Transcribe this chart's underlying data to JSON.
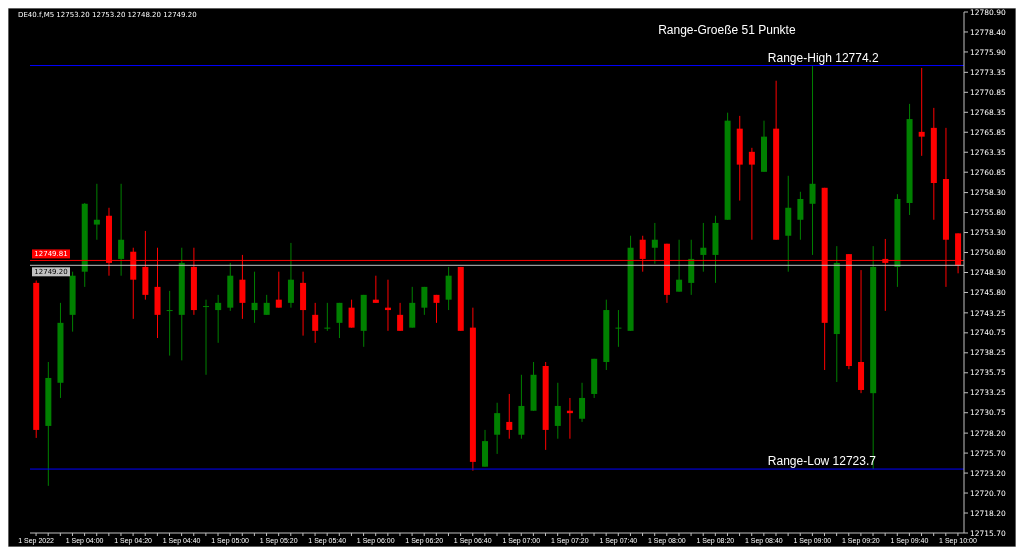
{
  "chart_data": {
    "type": "candlestick",
    "categories": [
      "1 Sep 2022",
      null,
      null,
      null,
      "1 Sep 04:00",
      null,
      null,
      null,
      "1 Sep 04:20",
      null,
      null,
      null,
      "1 Sep 04:40",
      null,
      null,
      null,
      "1 Sep 05:00",
      null,
      null,
      null,
      "1 Sep 05:20",
      null,
      null,
      null,
      "1 Sep 05:40",
      null,
      null,
      null,
      "1 Sep 06:00",
      null,
      null,
      null,
      "1 Sep 06:20",
      null,
      null,
      null,
      "1 Sep 06:40",
      null,
      null,
      null,
      "1 Sep 07:00",
      null,
      null,
      null,
      "1 Sep 07:20",
      null,
      null,
      null,
      "1 Sep 07:40",
      null,
      null,
      null,
      "1 Sep 08:00",
      null,
      null,
      null,
      "1 Sep 08:20",
      null,
      null,
      null,
      "1 Sep 08:40",
      null,
      null,
      null,
      "1 Sep 09:00",
      null,
      null,
      null,
      "1 Sep 09:20",
      null,
      null,
      null,
      "1 Sep 09:40",
      null,
      null,
      null,
      "1 Sep 10:00"
    ],
    "ohlc": [
      [
        12747.0,
        12747.3,
        12727.6,
        12728.6
      ],
      [
        12729.1,
        12737.1,
        12721.6,
        12735.1
      ],
      [
        12734.5,
        12744.5,
        12732.6,
        12742.0
      ],
      [
        12743.0,
        12748.4,
        12740.9,
        12747.9
      ],
      [
        12748.4,
        12757.0,
        12746.5,
        12756.9
      ],
      [
        12754.3,
        12759.4,
        12752.4,
        12754.9
      ],
      [
        12755.4,
        12756.4,
        12747.9,
        12749.5
      ],
      [
        12750.0,
        12759.4,
        12747.9,
        12752.4
      ],
      [
        12750.9,
        12751.4,
        12742.5,
        12747.4
      ],
      [
        12749.0,
        12753.5,
        12744.9,
        12745.5
      ],
      [
        12746.5,
        12751.4,
        12740.1,
        12743.0
      ],
      [
        12743.6,
        12746.0,
        12737.9,
        12743.6
      ],
      [
        12743.0,
        12751.4,
        12737.3,
        12749.5
      ],
      [
        12749.0,
        12751.4,
        12743.0,
        12743.6
      ],
      [
        12744.1,
        12744.9,
        12735.5,
        12744.1
      ],
      [
        12743.6,
        12745.5,
        12739.5,
        12744.5
      ],
      [
        12743.9,
        12749.5,
        12743.5,
        12747.9
      ],
      [
        12747.4,
        12750.5,
        12742.5,
        12744.5
      ],
      [
        12743.6,
        12748.4,
        12742.0,
        12744.5
      ],
      [
        12743.0,
        12745.5,
        12743.0,
        12744.5
      ],
      [
        12744.9,
        12748.4,
        12743.9,
        12743.9
      ],
      [
        12744.5,
        12752.0,
        12743.9,
        12747.4
      ],
      [
        12747.0,
        12748.4,
        12740.4,
        12743.6
      ],
      [
        12743.0,
        12744.5,
        12739.5,
        12741.0
      ],
      [
        12741.4,
        12744.5,
        12741.0,
        12741.4
      ],
      [
        12742.0,
        12744.5,
        12740.1,
        12744.5
      ],
      [
        12743.9,
        12744.9,
        12741.4,
        12741.4
      ],
      [
        12741.0,
        12745.5,
        12739.0,
        12745.5
      ],
      [
        12744.9,
        12747.9,
        12744.5,
        12744.5
      ],
      [
        12743.9,
        12747.4,
        12741.0,
        12743.6
      ],
      [
        12743.0,
        12744.5,
        12741.0,
        12741.0
      ],
      [
        12741.4,
        12746.5,
        12741.4,
        12744.5
      ],
      [
        12743.9,
        12746.5,
        12743.0,
        12746.5
      ],
      [
        12745.5,
        12745.5,
        12742.0,
        12744.5
      ],
      [
        12744.9,
        12749.0,
        12743.6,
        12747.9
      ],
      [
        12749.0,
        12749.0,
        12741.0,
        12741.0
      ],
      [
        12741.4,
        12743.9,
        12723.5,
        12724.6
      ],
      [
        12724.0,
        12728.6,
        12724.0,
        12727.2
      ],
      [
        12728.0,
        12732.0,
        12725.6,
        12730.7
      ],
      [
        12729.6,
        12733.1,
        12727.5,
        12728.6
      ],
      [
        12728.0,
        12735.5,
        12727.5,
        12731.6
      ],
      [
        12731.0,
        12737.1,
        12731.0,
        12735.5
      ],
      [
        12736.6,
        12737.1,
        12726.1,
        12728.6
      ],
      [
        12729.1,
        12734.5,
        12727.5,
        12731.6
      ],
      [
        12731.0,
        12732.6,
        12727.5,
        12730.7
      ],
      [
        12730.0,
        12734.5,
        12729.6,
        12732.6
      ],
      [
        12733.1,
        12737.5,
        12732.6,
        12737.5
      ],
      [
        12737.1,
        12744.9,
        12736.1,
        12743.6
      ],
      [
        12741.4,
        12743.6,
        12739.0,
        12741.4
      ],
      [
        12741.0,
        12752.9,
        12741.0,
        12751.4
      ],
      [
        12752.4,
        12752.9,
        12748.4,
        12750.0
      ],
      [
        12751.4,
        12754.5,
        12749.4,
        12752.4
      ],
      [
        12751.9,
        12751.9,
        12744.5,
        12745.5
      ],
      [
        12745.9,
        12752.4,
        12745.9,
        12747.4
      ],
      [
        12747.0,
        12752.4,
        12745.5,
        12750.0
      ],
      [
        12750.5,
        12754.5,
        12748.4,
        12751.4
      ],
      [
        12750.5,
        12755.4,
        12747.0,
        12754.5
      ],
      [
        12754.9,
        12768.3,
        12754.9,
        12767.3
      ],
      [
        12766.3,
        12767.9,
        12757.3,
        12761.8
      ],
      [
        12763.4,
        12763.9,
        12752.4,
        12761.8
      ],
      [
        12760.9,
        12767.3,
        12760.9,
        12765.3
      ],
      [
        12766.3,
        12772.3,
        12752.4,
        12752.4
      ],
      [
        12752.9,
        12760.4,
        12748.4,
        12756.4
      ],
      [
        12754.9,
        12758.4,
        12752.4,
        12757.5
      ],
      [
        12756.9,
        12774.2,
        12750.5,
        12759.4
      ],
      [
        12758.9,
        12758.9,
        12736.1,
        12742.0
      ],
      [
        12740.6,
        12751.6,
        12734.6,
        12749.5
      ],
      [
        12750.6,
        12750.6,
        12736.2,
        12736.6
      ],
      [
        12737.1,
        12748.6,
        12733.2,
        12733.6
      ],
      [
        12733.2,
        12751.6,
        12723.7,
        12749.0
      ],
      [
        12750.0,
        12752.5,
        12743.5,
        12749.5
      ],
      [
        12749.0,
        12758.1,
        12746.5,
        12757.5
      ],
      [
        12757.0,
        12769.4,
        12755.5,
        12767.5
      ],
      [
        12765.9,
        12773.9,
        12762.9,
        12765.3
      ],
      [
        12766.4,
        12768.9,
        12754.9,
        12759.5
      ],
      [
        12760.0,
        12766.4,
        12746.5,
        12752.4
      ],
      [
        12753.2,
        12753.2,
        12748.2,
        12749.2
      ]
    ],
    "colors": [
      "#ff0000",
      "#008000",
      "#008000",
      "#008000",
      "#008000",
      "#008000",
      "#ff0000",
      "#008000",
      "#ff0000",
      "#ff0000",
      "#ff0000",
      "#008000",
      "#008000",
      "#ff0000",
      "#008000",
      "#008000",
      "#008000",
      "#ff0000",
      "#008000",
      "#008000",
      "#ff0000",
      "#008000",
      "#ff0000",
      "#ff0000",
      "#008000",
      "#008000",
      "#ff0000",
      "#008000",
      "#ff0000",
      "#ff0000",
      "#ff0000",
      "#008000",
      "#008000",
      "#ff0000",
      "#008000",
      "#ff0000",
      "#ff0000",
      "#008000",
      "#008000",
      "#ff0000",
      "#008000",
      "#008000",
      "#ff0000",
      "#008000",
      "#ff0000",
      "#008000",
      "#008000",
      "#008000",
      "#008000",
      "#008000",
      "#ff0000",
      "#008000",
      "#ff0000",
      "#008000",
      "#008000",
      "#008000",
      "#008000",
      "#008000",
      "#ff0000",
      "#ff0000",
      "#008000",
      "#ff0000",
      "#008000",
      "#008000",
      "#008000",
      "#ff0000",
      "#008000",
      "#ff0000",
      "#ff0000",
      "#008000",
      "#ff0000",
      "#008000",
      "#008000",
      "#ff0000",
      "#ff0000",
      "#ff0000",
      "#ff0000"
    ],
    "ylim": [
      12715.7,
      12780.9
    ],
    "yticks": [
      {
        "value": 12780.9,
        "label": "12780.90"
      },
      {
        "value": 12778.4,
        "label": "12778.40"
      },
      {
        "value": 12775.9,
        "label": "12775.90"
      },
      {
        "value": 12773.35,
        "label": "12773.35"
      },
      {
        "value": 12770.85,
        "label": "12770.85"
      },
      {
        "value": 12768.35,
        "label": "12768.35"
      },
      {
        "value": 12765.85,
        "label": "12765.85"
      },
      {
        "value": 12763.35,
        "label": "12763.35"
      },
      {
        "value": 12760.85,
        "label": "12760.85"
      },
      {
        "value": 12758.3,
        "label": "12758.30"
      },
      {
        "value": 12755.8,
        "label": "12755.80"
      },
      {
        "value": 12753.3,
        "label": "12753.30"
      },
      {
        "value": 12750.8,
        "label": "12750.80"
      },
      {
        "value": 12748.3,
        "label": "12748.30"
      },
      {
        "value": 12745.8,
        "label": "12745.80"
      },
      {
        "value": 12743.25,
        "label": "12743.25"
      },
      {
        "value": 12740.75,
        "label": "12740.75"
      },
      {
        "value": 12738.25,
        "label": "12738.25"
      },
      {
        "value": 12735.75,
        "label": "12735.75"
      },
      {
        "value": 12733.25,
        "label": "12733.25"
      },
      {
        "value": 12730.75,
        "label": "12730.75"
      },
      {
        "value": 12728.2,
        "label": "12728.20"
      },
      {
        "value": 12725.7,
        "label": "12725.70"
      },
      {
        "value": 12723.2,
        "label": "12723.20"
      },
      {
        "value": 12720.7,
        "label": "12720.70"
      },
      {
        "value": 12718.2,
        "label": "12718.20"
      },
      {
        "value": 12715.7,
        "label": "12715.70"
      }
    ],
    "grid": false,
    "ref_lines": [
      {
        "axis": "y",
        "value": 12774.2,
        "label": "Range-High 12774.2",
        "color": "#0000ff"
      },
      {
        "axis": "y",
        "value": 12723.7,
        "label": "Range-Low 12723.7",
        "color": "#0000ff"
      },
      {
        "axis": "y",
        "value": 12749.81,
        "label": "12749.81",
        "color": "#ff0000"
      },
      {
        "axis": "y",
        "value": 12749.2,
        "label": "12749.20",
        "color": "#c0c0c0"
      }
    ],
    "annotations": [
      "DE40.f,M5  12753.20 12753.20 12748.20 12749.20",
      "Range-Groeße 51 Punkte"
    ]
  }
}
